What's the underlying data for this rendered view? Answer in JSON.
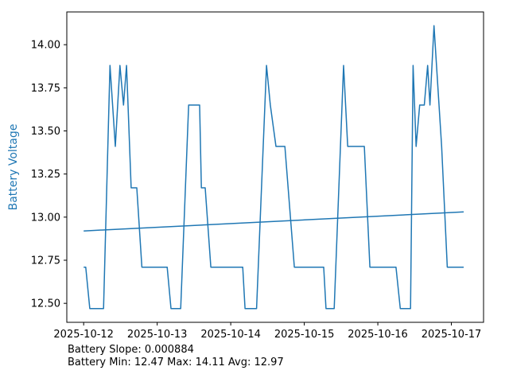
{
  "chart_data": {
    "type": "line",
    "title": "",
    "xlabel": "",
    "ylabel": "Battery Voltage",
    "ylabel_color": "#1f77b4",
    "line_color": "#1f77b4",
    "axis_color": "#000000",
    "background": "#ffffff",
    "grid": false,
    "legend": "none",
    "ylim": [
      12.39,
      14.19
    ],
    "xlim": [
      "2025-10-11 18:30",
      "2025-10-17 10:30"
    ],
    "y_ticks": [
      12.5,
      12.75,
      13.0,
      13.25,
      13.5,
      13.75,
      14.0
    ],
    "x_ticks": [
      "2025-10-12",
      "2025-10-13",
      "2025-10-14",
      "2025-10-15",
      "2025-10-16",
      "2025-10-17"
    ],
    "series": [
      {
        "name": "battery-voltage-line",
        "stroke_width": 1.5,
        "points": [
          [
            "2025-10-12 00:00",
            12.71
          ],
          [
            "2025-10-12 00:40",
            12.71
          ],
          [
            "2025-10-12 02:00",
            12.47
          ],
          [
            "2025-10-12 06:30",
            12.47
          ],
          [
            "2025-10-12 08:35",
            13.88
          ],
          [
            "2025-10-12 10:20",
            13.41
          ],
          [
            "2025-10-12 11:50",
            13.88
          ],
          [
            "2025-10-12 13:00",
            13.65
          ],
          [
            "2025-10-12 14:00",
            13.88
          ],
          [
            "2025-10-12 15:30",
            13.17
          ],
          [
            "2025-10-12 17:20",
            13.17
          ],
          [
            "2025-10-12 19:00",
            12.71
          ],
          [
            "2025-10-13 03:15",
            12.71
          ],
          [
            "2025-10-13 04:30",
            12.47
          ],
          [
            "2025-10-13 07:40",
            12.47
          ],
          [
            "2025-10-13 10:15",
            13.65
          ],
          [
            "2025-10-13 13:50",
            13.65
          ],
          [
            "2025-10-13 14:25",
            13.17
          ],
          [
            "2025-10-13 15:40",
            13.17
          ],
          [
            "2025-10-13 17:30",
            12.71
          ],
          [
            "2025-10-14 03:55",
            12.71
          ],
          [
            "2025-10-14 04:40",
            12.47
          ],
          [
            "2025-10-14 08:25",
            12.47
          ],
          [
            "2025-10-14 11:40",
            13.88
          ],
          [
            "2025-10-14 12:55",
            13.65
          ],
          [
            "2025-10-14 14:45",
            13.41
          ],
          [
            "2025-10-14 17:40",
            13.41
          ],
          [
            "2025-10-14 20:45",
            12.71
          ],
          [
            "2025-10-15 06:20",
            12.71
          ],
          [
            "2025-10-15 07:05",
            12.47
          ],
          [
            "2025-10-15 09:45",
            12.47
          ],
          [
            "2025-10-15 12:50",
            13.88
          ],
          [
            "2025-10-15 14:10",
            13.41
          ],
          [
            "2025-10-15 19:35",
            13.41
          ],
          [
            "2025-10-15 21:25",
            12.71
          ],
          [
            "2025-10-16 05:55",
            12.71
          ],
          [
            "2025-10-16 07:20",
            12.47
          ],
          [
            "2025-10-16 10:40",
            12.47
          ],
          [
            "2025-10-16 11:30",
            13.88
          ],
          [
            "2025-10-16 12:30",
            13.41
          ],
          [
            "2025-10-16 13:40",
            13.65
          ],
          [
            "2025-10-16 15:10",
            13.65
          ],
          [
            "2025-10-16 16:15",
            13.88
          ],
          [
            "2025-10-16 17:00",
            13.65
          ],
          [
            "2025-10-16 18:20",
            14.11
          ],
          [
            "2025-10-16 20:50",
            13.41
          ],
          [
            "2025-10-16 22:40",
            12.71
          ],
          [
            "2025-10-17 04:00",
            12.71
          ]
        ]
      },
      {
        "name": "trend-line",
        "stroke_width": 1.5,
        "points": [
          [
            "2025-10-12 00:00",
            12.92
          ],
          [
            "2025-10-17 04:00",
            13.03
          ]
        ]
      }
    ]
  },
  "annotations": {
    "line1": "Battery Slope: 0.000884",
    "line2": "Battery Min: 12.47 Max: 14.11 Avg: 12.97"
  }
}
